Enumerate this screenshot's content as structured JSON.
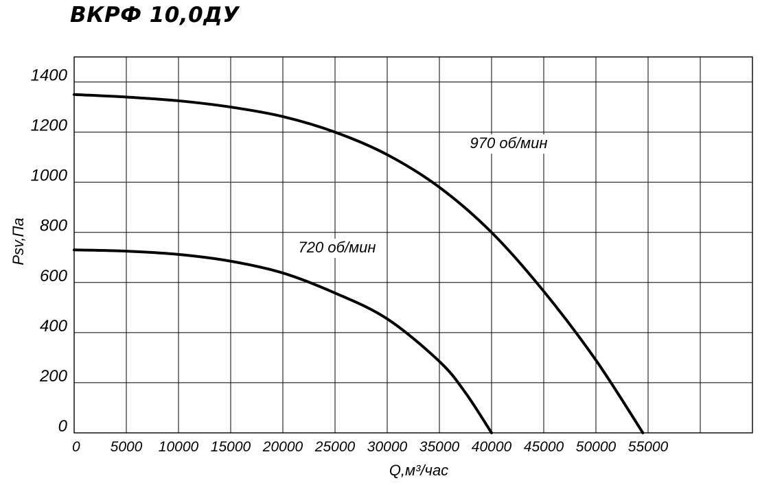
{
  "chart_data": {
    "type": "line",
    "title": "ВКРФ 10,0ДУ",
    "xlabel": "Q,м³/час",
    "ylabel": "Psv,Па",
    "xlim": [
      0,
      65000
    ],
    "ylim": [
      0,
      1500
    ],
    "x_ticks": [
      0,
      5000,
      10000,
      15000,
      20000,
      25000,
      30000,
      35000,
      40000,
      45000,
      50000,
      55000
    ],
    "x_tick_labels": [
      "0",
      "5000",
      "10000",
      "15000",
      "20000",
      "25000",
      "30000",
      "35000",
      "40000",
      "45000",
      "50000",
      "55000"
    ],
    "y_ticks": [
      0,
      200,
      400,
      600,
      800,
      1000,
      1200,
      1400
    ],
    "y_tick_labels": [
      "0",
      "200",
      "400",
      "600",
      "800",
      "1000",
      "1200",
      "1400"
    ],
    "grid": true,
    "series": [
      {
        "name": "970 об/мин",
        "x": [
          0,
          5000,
          10000,
          15000,
          20000,
          25000,
          30000,
          35000,
          40000,
          45000,
          50000,
          54500
        ],
        "y": [
          1350,
          1340,
          1325,
          1300,
          1262,
          1200,
          1110,
          980,
          800,
          565,
          290,
          0
        ]
      },
      {
        "name": "720 об/мин",
        "x": [
          0,
          5000,
          10000,
          15000,
          20000,
          25000,
          30000,
          35000,
          37500,
          40000
        ],
        "y": [
          730,
          725,
          712,
          685,
          638,
          558,
          455,
          285,
          160,
          0
        ]
      }
    ]
  }
}
